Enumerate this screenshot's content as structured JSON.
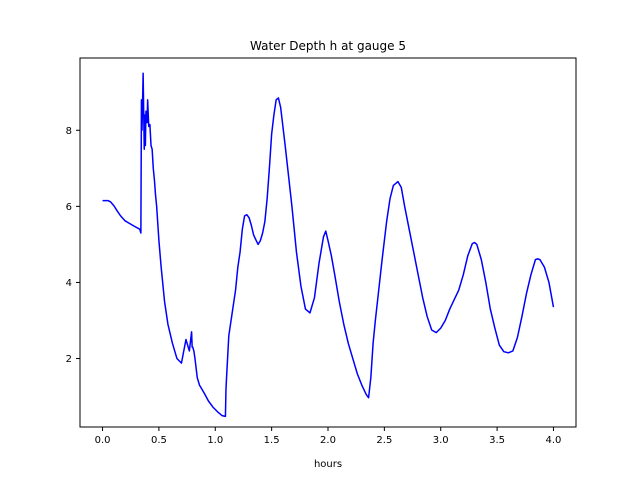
{
  "chart_data": {
    "type": "line",
    "title": "Water Depth h at gauge 5",
    "xlabel": "hours",
    "ylabel": "",
    "xlim": [
      -0.2,
      4.2
    ],
    "ylim": [
      0.2,
      9.9
    ],
    "x_ticks": [
      0.0,
      0.5,
      1.0,
      1.5,
      2.0,
      2.5,
      3.0,
      3.5,
      4.0
    ],
    "x_tick_labels": [
      "0.0",
      "0.5",
      "1.0",
      "1.5",
      "2.0",
      "2.5",
      "3.0",
      "3.5",
      "4.0"
    ],
    "y_ticks": [
      2,
      4,
      6,
      8
    ],
    "y_tick_labels": [
      "2",
      "4",
      "6",
      "8"
    ],
    "grid": false,
    "series": [
      {
        "color": "#0000ff",
        "x": [
          0.0,
          0.05,
          0.07,
          0.1,
          0.13,
          0.16,
          0.2,
          0.24,
          0.28,
          0.33,
          0.34,
          0.345,
          0.35,
          0.355,
          0.36,
          0.365,
          0.37,
          0.375,
          0.38,
          0.385,
          0.39,
          0.395,
          0.4,
          0.41,
          0.42,
          0.43,
          0.44,
          0.45,
          0.46,
          0.47,
          0.48,
          0.5,
          0.52,
          0.55,
          0.58,
          0.62,
          0.66,
          0.7,
          0.74,
          0.77,
          0.79,
          0.795,
          0.8,
          0.81,
          0.82,
          0.84,
          0.86,
          0.9,
          0.94,
          0.98,
          1.02,
          1.06,
          1.09,
          1.095,
          1.1,
          1.12,
          1.15,
          1.18,
          1.2,
          1.22,
          1.24,
          1.26,
          1.28,
          1.3,
          1.32,
          1.34,
          1.36,
          1.38,
          1.4,
          1.42,
          1.44,
          1.46,
          1.48,
          1.5,
          1.52,
          1.54,
          1.56,
          1.58,
          1.6,
          1.62,
          1.65,
          1.68,
          1.72,
          1.76,
          1.8,
          1.84,
          1.88,
          1.92,
          1.96,
          1.98,
          2.0,
          2.03,
          2.06,
          2.1,
          2.14,
          2.18,
          2.22,
          2.26,
          2.3,
          2.34,
          2.36,
          2.38,
          2.4,
          2.42,
          2.45,
          2.48,
          2.52,
          2.55,
          2.58,
          2.6,
          2.62,
          2.65,
          2.68,
          2.72,
          2.76,
          2.8,
          2.84,
          2.88,
          2.92,
          2.96,
          3.0,
          3.04,
          3.08,
          3.12,
          3.16,
          3.2,
          3.24,
          3.28,
          3.3,
          3.32,
          3.36,
          3.4,
          3.44,
          3.48,
          3.52,
          3.56,
          3.6,
          3.64,
          3.68,
          3.72,
          3.76,
          3.8,
          3.84,
          3.86,
          3.88,
          3.92,
          3.96,
          4.0
        ],
        "y": [
          6.15,
          6.15,
          6.12,
          6.02,
          5.88,
          5.75,
          5.62,
          5.55,
          5.48,
          5.4,
          5.3,
          8.8,
          8.0,
          8.7,
          9.5,
          8.5,
          7.5,
          8.4,
          7.6,
          8.5,
          8.3,
          8.2,
          8.8,
          8.1,
          8.15,
          7.6,
          7.5,
          7.0,
          6.7,
          6.3,
          6.0,
          5.1,
          4.4,
          3.5,
          2.9,
          2.4,
          2.0,
          1.88,
          2.5,
          2.2,
          2.7,
          2.3,
          2.3,
          2.2,
          2.0,
          1.5,
          1.3,
          1.1,
          0.88,
          0.72,
          0.6,
          0.5,
          0.48,
          1.2,
          1.5,
          2.6,
          3.2,
          3.8,
          4.4,
          4.8,
          5.4,
          5.75,
          5.78,
          5.7,
          5.5,
          5.25,
          5.12,
          5.0,
          5.1,
          5.3,
          5.6,
          6.2,
          7.0,
          7.9,
          8.4,
          8.8,
          8.85,
          8.6,
          8.1,
          7.6,
          6.8,
          6.0,
          4.8,
          3.9,
          3.3,
          3.2,
          3.6,
          4.5,
          5.2,
          5.35,
          5.1,
          4.7,
          4.2,
          3.5,
          2.9,
          2.4,
          2.0,
          1.6,
          1.3,
          1.05,
          0.97,
          1.5,
          2.4,
          3.0,
          3.8,
          4.6,
          5.6,
          6.2,
          6.55,
          6.6,
          6.65,
          6.5,
          6.0,
          5.4,
          4.8,
          4.2,
          3.6,
          3.1,
          2.75,
          2.68,
          2.8,
          3.0,
          3.3,
          3.55,
          3.8,
          4.2,
          4.7,
          5.02,
          5.05,
          5.0,
          4.6,
          4.0,
          3.3,
          2.8,
          2.35,
          2.18,
          2.15,
          2.2,
          2.55,
          3.1,
          3.7,
          4.2,
          4.6,
          4.62,
          4.6,
          4.4,
          4.0,
          3.35
        ]
      }
    ]
  }
}
